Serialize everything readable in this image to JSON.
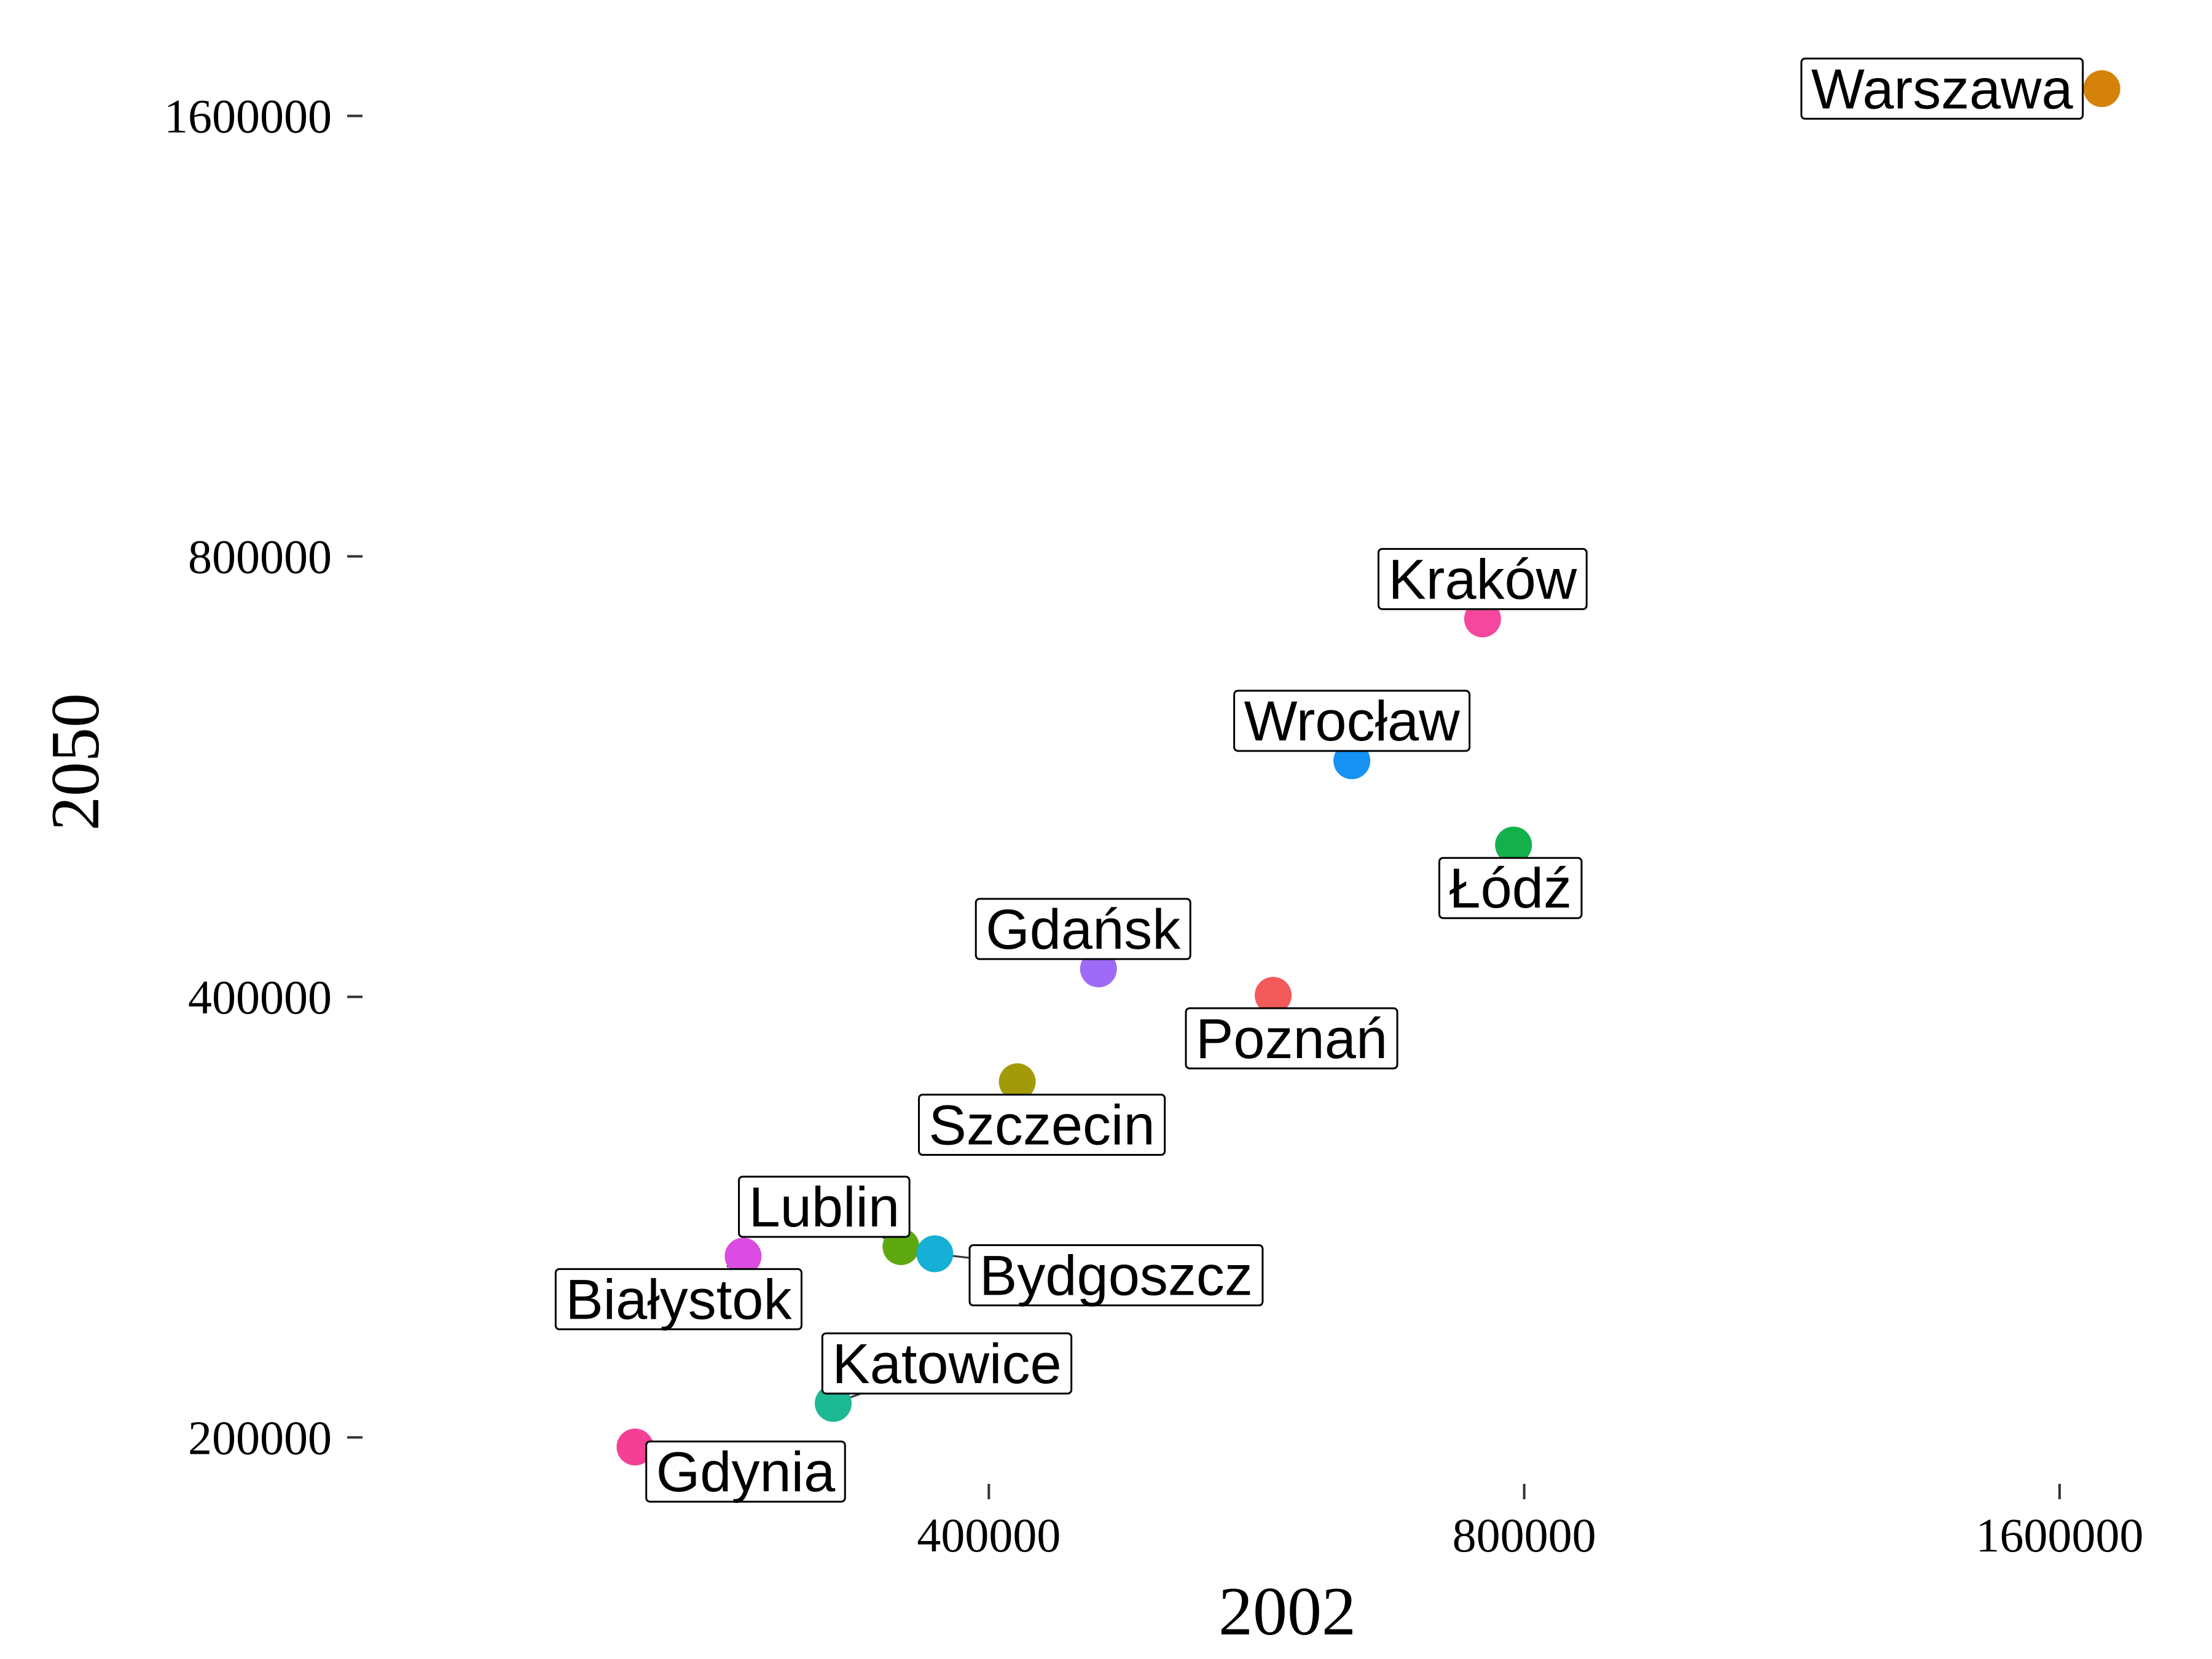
{
  "chart_data": {
    "type": "scatter",
    "title": "",
    "xlabel": "2002",
    "ylabel": "2050",
    "xscale": "log",
    "yscale": "log",
    "xlim": [
      185000,
      1800000
    ],
    "ylim": [
      185000,
      1760000
    ],
    "xticks": [
      400000,
      800000,
      1600000
    ],
    "yticks": [
      200000,
      400000,
      800000,
      1600000
    ],
    "grid": false,
    "legend": "none",
    "points": [
      {
        "label": "Warszawa",
        "x": 1690000,
        "y": 1670000,
        "color": "#D4820A"
      },
      {
        "label": "Kraków",
        "x": 758000,
        "y": 725000,
        "color": "#F4479D"
      },
      {
        "label": "Wrocław",
        "x": 640000,
        "y": 580000,
        "color": "#1692F5"
      },
      {
        "label": "Łódź",
        "x": 789000,
        "y": 508000,
        "color": "#14B04C"
      },
      {
        "label": "Gdańsk",
        "x": 461000,
        "y": 418000,
        "color": "#9D6BF5"
      },
      {
        "label": "Poznań",
        "x": 578000,
        "y": 401000,
        "color": "#F25A5A"
      },
      {
        "label": "Szczecin",
        "x": 415000,
        "y": 350000,
        "color": "#A39A0A"
      },
      {
        "label": "Lublin",
        "x": 357000,
        "y": 270000,
        "color": "#5DA80F"
      },
      {
        "label": "Bydgoszcz",
        "x": 373000,
        "y": 267000,
        "color": "#16AFD6"
      },
      {
        "label": "Białystok",
        "x": 291000,
        "y": 266000,
        "color": "#DB4CE2"
      },
      {
        "label": "Katowice",
        "x": 327000,
        "y": 211000,
        "color": "#1DB894"
      },
      {
        "label": "Gdynia",
        "x": 253000,
        "y": 197000,
        "color": "#F43F94"
      }
    ]
  }
}
